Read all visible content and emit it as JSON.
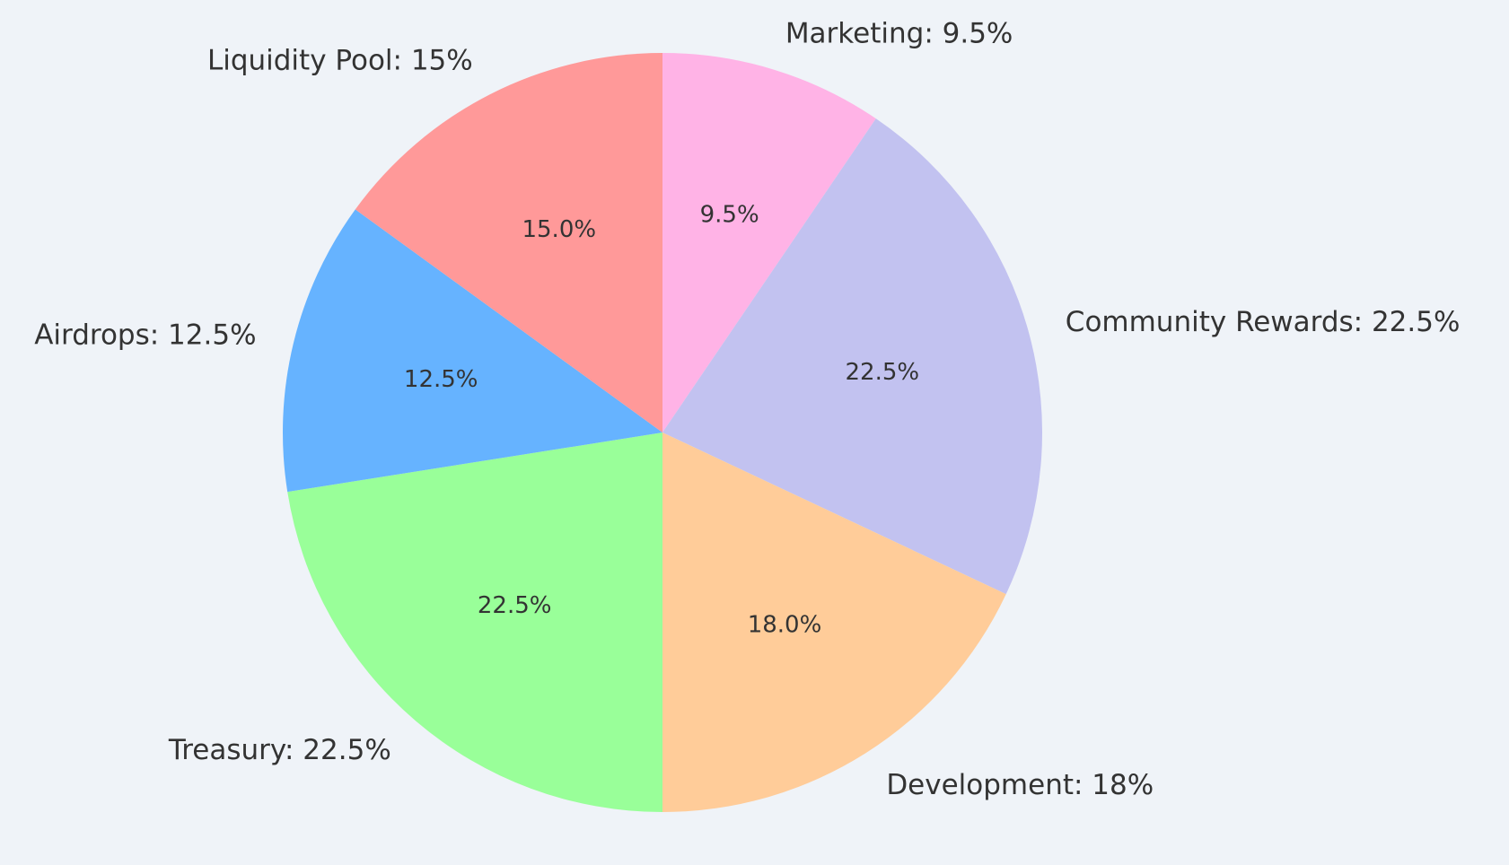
{
  "chart_data": {
    "type": "pie",
    "title": "",
    "start_angle_deg": 90,
    "direction": "clockwise",
    "background": "#eff3f8",
    "slices": [
      {
        "name": "Marketing",
        "value": 9.5,
        "label": "Marketing: 9.5%",
        "pct_label": "9.5%",
        "color": "#ffb3e6"
      },
      {
        "name": "Community Rewards",
        "value": 22.5,
        "label": "Community Rewards: 22.5%",
        "pct_label": "22.5%",
        "color": "#c2c2f0"
      },
      {
        "name": "Development",
        "value": 18,
        "label": "Development: 18%",
        "pct_label": "18.0%",
        "color": "#ffcc99"
      },
      {
        "name": "Treasury",
        "value": 22.5,
        "label": "Treasury: 22.5%",
        "pct_label": "22.5%",
        "color": "#99ff99"
      },
      {
        "name": "Airdrops",
        "value": 12.5,
        "label": "Airdrops: 12.5%",
        "pct_label": "12.5%",
        "color": "#66b3ff"
      },
      {
        "name": "Liquidity Pool",
        "value": 15,
        "label": "Liquidity Pool: 15%",
        "pct_label": "15.0%",
        "color": "#ff9999"
      }
    ]
  }
}
